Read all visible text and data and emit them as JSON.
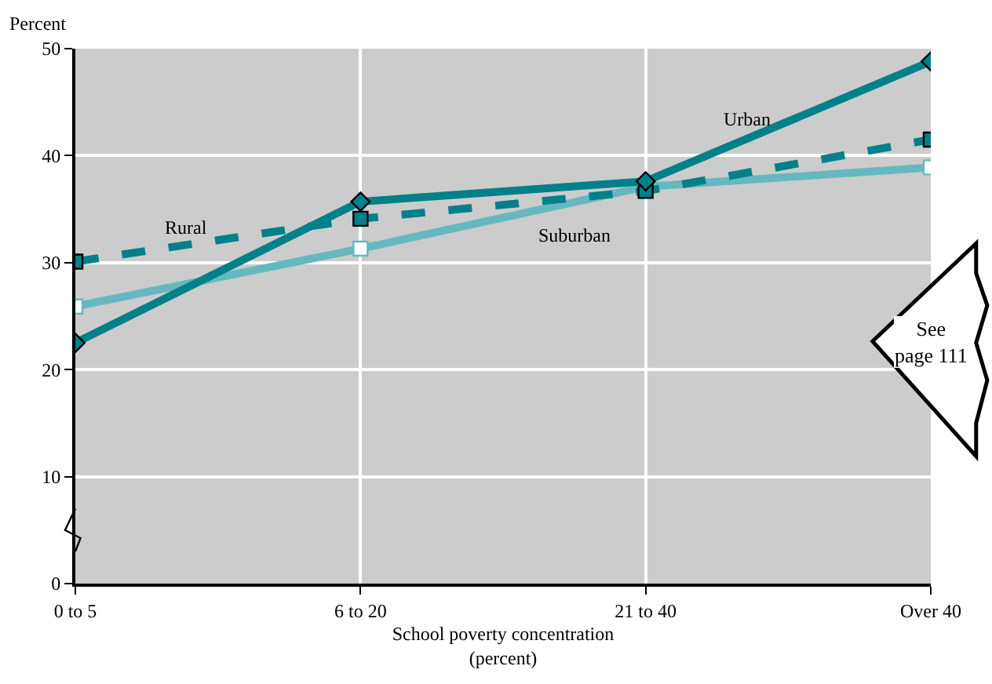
{
  "chart_data": {
    "type": "line",
    "ylabel": "Percent",
    "xlabel": "School poverty concentration\n(percent)",
    "categories": [
      "0 to 5",
      "6 to 20",
      "21 to 40",
      "Over 40"
    ],
    "series": [
      {
        "name": "Urban",
        "color": "#00808a",
        "values": [
          22.5,
          35.7,
          37.6,
          48.8
        ],
        "marker": "diamond",
        "line_style": "solid"
      },
      {
        "name": "Rural",
        "color": "#00808a",
        "values": [
          30.1,
          34.1,
          36.7,
          41.5
        ],
        "marker": "square",
        "line_style": "dashed"
      },
      {
        "name": "Suburban",
        "color": "#66b8c0",
        "values": [
          25.9,
          31.3,
          37.1,
          38.9
        ],
        "marker": "square-open",
        "line_style": "solid"
      }
    ],
    "ylim": [
      0,
      50
    ],
    "yticks": [
      0,
      10,
      20,
      30,
      40,
      50
    ],
    "grid": true,
    "legend": false,
    "annotations": [
      "See\npage 111"
    ]
  }
}
